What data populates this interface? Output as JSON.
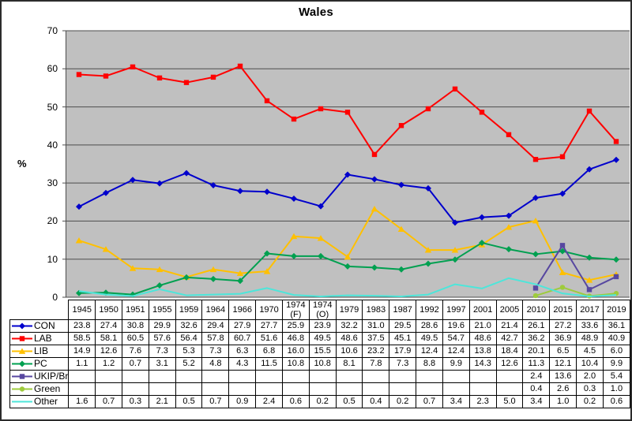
{
  "chart_data": {
    "type": "line",
    "title": "Wales",
    "ylabel": "%",
    "ylim": [
      0,
      70
    ],
    "ytick_step": 10,
    "grid": "horizontal-only",
    "legend_position": "table-left-column",
    "plot_bg_color": "#C0C0C0",
    "grid_color": "#4d4d4d",
    "value_format": "one-decimal",
    "categories": [
      "1945",
      "1950",
      "1951",
      "1955",
      "1959",
      "1964",
      "1966",
      "1970",
      "1974 (F)",
      "1974 (O)",
      "1979",
      "1983",
      "1987",
      "1992",
      "1997",
      "2001",
      "2005",
      "2010",
      "2015",
      "2017",
      "2019"
    ],
    "series": [
      {
        "name": "CON",
        "color": "#0000CC",
        "marker": "diamond",
        "values": [
          23.8,
          27.4,
          30.8,
          29.9,
          32.6,
          29.4,
          27.9,
          27.7,
          25.9,
          23.9,
          32.2,
          31.0,
          29.5,
          28.6,
          19.6,
          21.0,
          21.4,
          26.1,
          27.2,
          33.6,
          36.1
        ]
      },
      {
        "name": "LAB",
        "color": "#FF0000",
        "marker": "square",
        "values": [
          58.5,
          58.1,
          60.5,
          57.6,
          56.4,
          57.8,
          60.7,
          51.6,
          46.8,
          49.5,
          48.6,
          37.5,
          45.1,
          49.5,
          54.7,
          48.6,
          42.7,
          36.2,
          36.9,
          48.9,
          40.9
        ]
      },
      {
        "name": "LIB",
        "color": "#FFC000",
        "marker": "triangle",
        "values": [
          14.9,
          12.6,
          7.6,
          7.3,
          5.3,
          7.3,
          6.3,
          6.8,
          16.0,
          15.5,
          10.6,
          23.2,
          17.9,
          12.4,
          12.4,
          13.8,
          18.4,
          20.1,
          6.5,
          4.5,
          6.0
        ]
      },
      {
        "name": "PC",
        "color": "#00A050",
        "marker": "diamond",
        "values": [
          1.1,
          1.2,
          0.7,
          3.1,
          5.2,
          4.8,
          4.3,
          11.5,
          10.8,
          10.8,
          8.1,
          7.8,
          7.3,
          8.8,
          9.9,
          14.3,
          12.6,
          11.3,
          12.1,
          10.4,
          9.9
        ]
      },
      {
        "name": "UKIP/Br",
        "color": "#5747A0",
        "marker": "square",
        "values": [
          null,
          null,
          null,
          null,
          null,
          null,
          null,
          null,
          null,
          null,
          null,
          null,
          null,
          null,
          null,
          null,
          null,
          2.4,
          13.6,
          2.0,
          5.4
        ]
      },
      {
        "name": "Green",
        "color": "#9ECB3C",
        "marker": "circle",
        "values": [
          null,
          null,
          null,
          null,
          null,
          null,
          null,
          null,
          null,
          null,
          null,
          null,
          null,
          null,
          null,
          null,
          null,
          0.4,
          2.6,
          0.3,
          1.0
        ]
      },
      {
        "name": "Other",
        "color": "#4DE6DA",
        "marker": "none",
        "values": [
          1.6,
          0.7,
          0.3,
          2.1,
          0.5,
          0.7,
          0.9,
          2.4,
          0.6,
          0.2,
          0.5,
          0.4,
          0.2,
          0.7,
          3.4,
          2.3,
          5.0,
          3.4,
          1.0,
          0.2,
          0.6
        ]
      }
    ]
  }
}
